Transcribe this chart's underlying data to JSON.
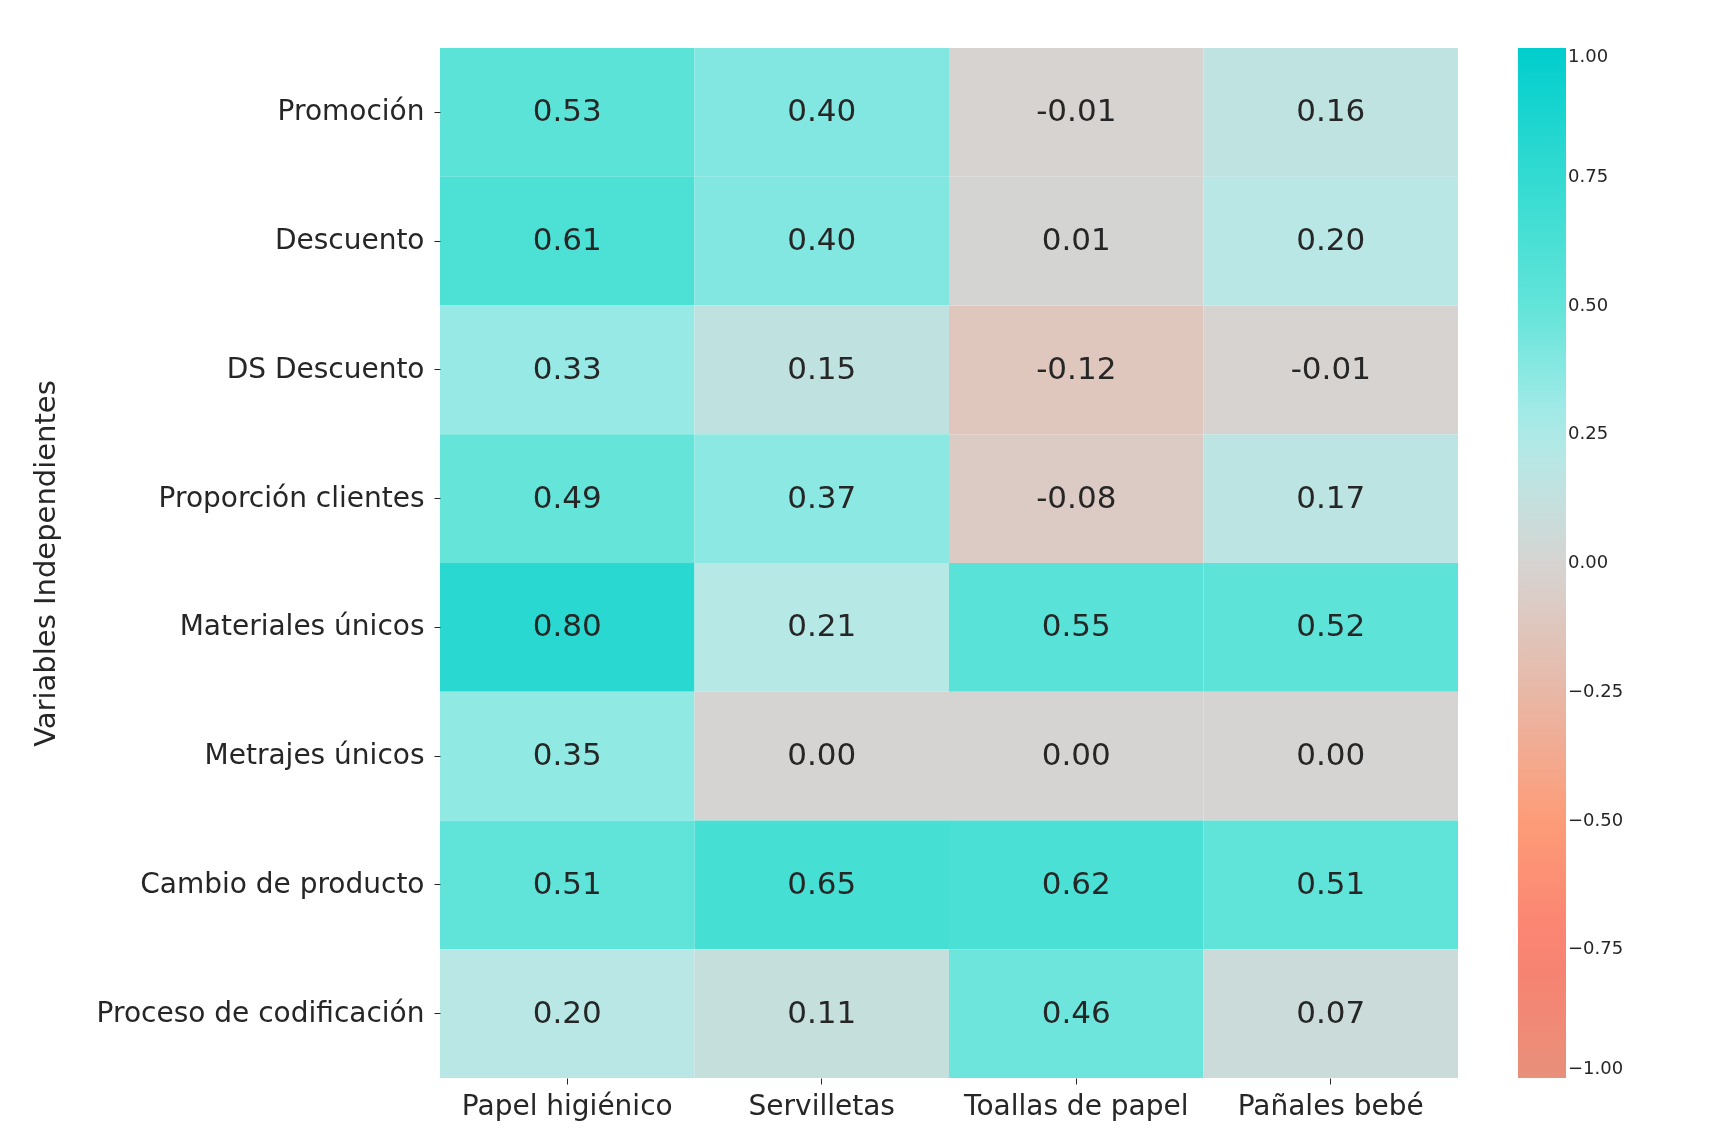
{
  "chart_data": {
    "type": "heatmap",
    "ylabel": "Variables Independientes",
    "categories": [
      "Papel higiénico",
      "Servilletas",
      "Toallas de papel",
      "Pañales bebé"
    ],
    "y_categories": [
      "Promoción",
      "Descuento",
      "DS Descuento",
      "Proporción clientes",
      "Materiales únicos",
      "Metrajes únicos",
      "Cambio de producto",
      "Proceso de codificación"
    ],
    "cells": [
      [
        0.53,
        0.4,
        -0.01,
        0.16
      ],
      [
        0.61,
        0.4,
        0.01,
        0.2
      ],
      [
        0.33,
        0.15,
        -0.12,
        -0.01
      ],
      [
        0.49,
        0.37,
        -0.08,
        0.17
      ],
      [
        0.8,
        0.21,
        0.55,
        0.52
      ],
      [
        0.35,
        0.0,
        0.0,
        0.0
      ],
      [
        0.51,
        0.65,
        0.62,
        0.51
      ],
      [
        0.2,
        0.11,
        0.46,
        0.07
      ]
    ],
    "cell_labels": [
      [
        "0.53",
        "0.40",
        "-0.01",
        "0.16"
      ],
      [
        "0.61",
        "0.40",
        "0.01",
        "0.20"
      ],
      [
        "0.33",
        "0.15",
        "-0.12",
        "-0.01"
      ],
      [
        "0.49",
        "0.37",
        "-0.08",
        "0.17"
      ],
      [
        "0.80",
        "0.21",
        "0.55",
        "0.52"
      ],
      [
        "0.35",
        "0.00",
        "0.00",
        "0.00"
      ],
      [
        "0.51",
        "0.65",
        "0.62",
        "0.51"
      ],
      [
        "0.20",
        "0.11",
        "0.46",
        "0.07"
      ]
    ],
    "clim": [
      -1,
      1
    ],
    "cticks": [
      {
        "value": 1,
        "label": "1.00"
      },
      {
        "value": 0.75,
        "label": "0.75"
      },
      {
        "value": 0.5,
        "label": "0.50"
      },
      {
        "value": 0.25,
        "label": "0.25"
      },
      {
        "value": 0,
        "label": "0.00"
      },
      {
        "value": -0.25,
        "label": "−0.25"
      },
      {
        "value": -0.5,
        "label": "−0.50"
      },
      {
        "value": -0.75,
        "label": "−0.75"
      },
      {
        "value": -1,
        "label": "−1.00"
      }
    ]
  }
}
